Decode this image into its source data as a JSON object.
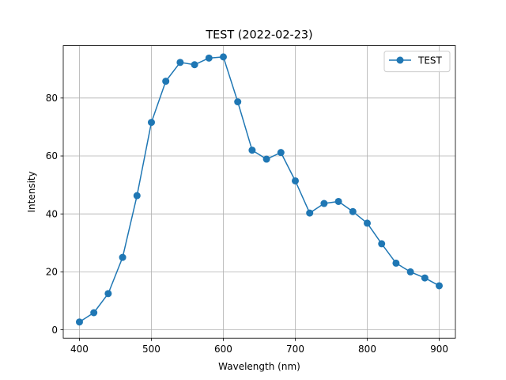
{
  "chart_data": {
    "type": "line",
    "title": "TEST (2022-02-23)",
    "xlabel": "Wavelength (nm)",
    "ylabel": "Intensity",
    "xlim": [
      377.5,
      922.5
    ],
    "ylim": [
      -2.9,
      98.1
    ],
    "xticks": [
      400,
      500,
      600,
      700,
      800,
      900
    ],
    "yticks": [
      0,
      20,
      40,
      60,
      80
    ],
    "grid": true,
    "legend_position": "top-right",
    "series": [
      {
        "name": "TEST",
        "color": "#1f77b4",
        "marker": "circle",
        "x": [
          400,
          420,
          440,
          460,
          480,
          500,
          520,
          540,
          560,
          580,
          600,
          620,
          640,
          660,
          680,
          700,
          720,
          740,
          760,
          780,
          800,
          820,
          840,
          860,
          880,
          900
        ],
        "y": [
          2.7,
          5.9,
          12.5,
          25.0,
          46.3,
          71.6,
          85.8,
          92.3,
          91.5,
          93.8,
          94.2,
          78.7,
          62.0,
          58.9,
          61.2,
          51.4,
          40.3,
          43.6,
          44.3,
          40.8,
          36.8,
          29.7,
          23.0,
          20.0,
          17.9,
          15.2
        ]
      }
    ]
  }
}
